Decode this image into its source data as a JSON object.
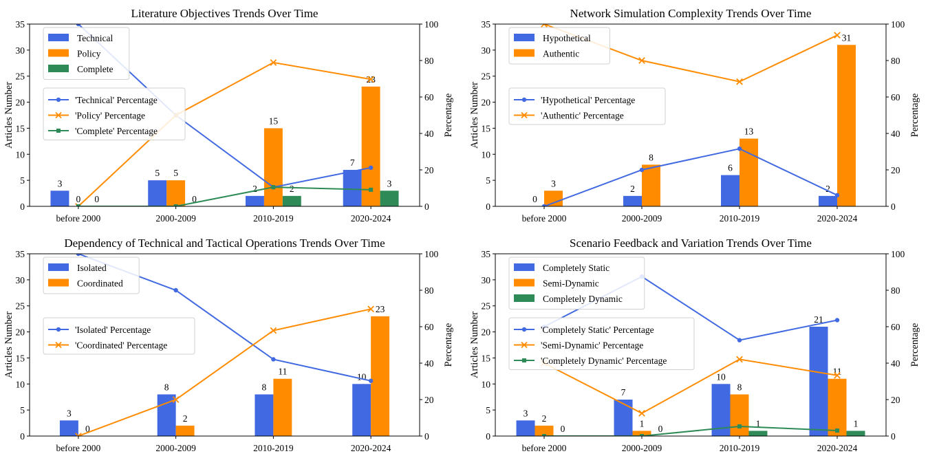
{
  "colors": {
    "blue": "#4169E1",
    "orange": "#FF8C00",
    "green": "#2E8B57"
  },
  "chart_data": [
    {
      "type": "bar",
      "title": "Literature Objectives Trends Over Time",
      "categories": [
        "before 2000",
        "2000-2009",
        "2010-2019",
        "2020-2024"
      ],
      "ylabel": "Articles Number",
      "y2label": "Percentage",
      "ylim": [
        0,
        35
      ],
      "y2lim": [
        0,
        100
      ],
      "yticks": [
        0,
        5,
        10,
        15,
        20,
        25,
        30,
        35
      ],
      "y2ticks": [
        0,
        20,
        40,
        60,
        80,
        100
      ],
      "bar_legend_position": "upper-left",
      "line_legend_position": "center-left",
      "series": [
        {
          "name": "Technical",
          "color": "blue",
          "values": [
            3,
            5,
            2,
            7
          ]
        },
        {
          "name": "Policy",
          "color": "orange",
          "values": [
            0,
            5,
            15,
            23
          ]
        },
        {
          "name": "Complete",
          "color": "green",
          "values": [
            0,
            0,
            2,
            3
          ]
        }
      ],
      "percentage_series": [
        {
          "name": "'Technical' Percentage",
          "color": "blue",
          "marker": "o",
          "values": [
            100,
            50,
            10.5,
            21.2
          ]
        },
        {
          "name": "'Policy' Percentage",
          "color": "orange",
          "marker": "x",
          "values": [
            0,
            50,
            78.9,
            69.7
          ]
        },
        {
          "name": "'Complete' Percentage",
          "color": "green",
          "marker": "s",
          "values": [
            0,
            0,
            10.5,
            9.1
          ]
        }
      ]
    },
    {
      "type": "bar",
      "title": "Network Simulation Complexity Trends Over Time",
      "categories": [
        "before 2000",
        "2000-2009",
        "2010-2019",
        "2020-2024"
      ],
      "ylabel": "Articles Number",
      "y2label": "Percentage",
      "ylim": [
        0,
        35
      ],
      "y2lim": [
        0,
        100
      ],
      "yticks": [
        0,
        5,
        10,
        15,
        20,
        25,
        30,
        35
      ],
      "y2ticks": [
        0,
        20,
        40,
        60,
        80,
        100
      ],
      "bar_legend_position": "upper-left",
      "line_legend_position": "center-left",
      "series": [
        {
          "name": "Hypothetical",
          "color": "blue",
          "values": [
            0,
            2,
            6,
            2
          ]
        },
        {
          "name": "Authentic",
          "color": "orange",
          "values": [
            3,
            8,
            13,
            31
          ]
        }
      ],
      "percentage_series": [
        {
          "name": "'Hypothetical' Percentage",
          "color": "blue",
          "marker": "o",
          "values": [
            0,
            20,
            31.6,
            6.1
          ]
        },
        {
          "name": "'Authentic' Percentage",
          "color": "orange",
          "marker": "x",
          "values": [
            100,
            80,
            68.4,
            93.9
          ]
        }
      ]
    },
    {
      "type": "bar",
      "title": "Dependency of Technical and Tactical Operations Trends Over Time",
      "categories": [
        "before 2000",
        "2000-2009",
        "2010-2019",
        "2020-2024"
      ],
      "ylabel": "Articles Number",
      "y2label": "Percentage",
      "ylim": [
        0,
        35
      ],
      "y2lim": [
        0,
        100
      ],
      "yticks": [
        0,
        5,
        10,
        15,
        20,
        25,
        30,
        35
      ],
      "y2ticks": [
        0,
        20,
        40,
        60,
        80,
        100
      ],
      "bar_legend_position": "upper-left",
      "line_legend_position": "center-left",
      "series": [
        {
          "name": "Isolated",
          "color": "blue",
          "values": [
            3,
            8,
            8,
            10
          ]
        },
        {
          "name": "Coordinated",
          "color": "orange",
          "values": [
            0,
            2,
            11,
            23
          ]
        }
      ],
      "percentage_series": [
        {
          "name": "'Isolated' Percentage",
          "color": "blue",
          "marker": "o",
          "values": [
            100,
            80,
            42.1,
            30.3
          ]
        },
        {
          "name": "'Coordinated' Percentage",
          "color": "orange",
          "marker": "x",
          "values": [
            0,
            20,
            57.9,
            69.7
          ]
        }
      ]
    },
    {
      "type": "bar",
      "title": "Scenario Feedback and Variation Trends Over Time",
      "categories": [
        "before 2000",
        "2000-2009",
        "2010-2019",
        "2020-2024"
      ],
      "ylabel": "Articles Number",
      "y2label": "Percentage",
      "ylim": [
        0,
        35
      ],
      "y2lim": [
        0,
        100
      ],
      "yticks": [
        0,
        5,
        10,
        15,
        20,
        25,
        30,
        35
      ],
      "y2ticks": [
        0,
        20,
        40,
        60,
        80,
        100
      ],
      "bar_legend_position": "upper-left",
      "line_legend_position": "center-left",
      "series": [
        {
          "name": " Completely Static",
          "color": "blue",
          "values": [
            3,
            7,
            10,
            21
          ]
        },
        {
          "name": "Semi-Dynamic",
          "color": "orange",
          "values": [
            2,
            1,
            8,
            11
          ]
        },
        {
          "name": " Completely Dynamic",
          "color": "green",
          "values": [
            0,
            0,
            1,
            1
          ]
        }
      ],
      "percentage_series": [
        {
          "name": "'Completely Static' Percentage",
          "color": "blue",
          "marker": "o",
          "values": [
            60,
            87.5,
            52.6,
            63.6
          ]
        },
        {
          "name": "'Semi-Dynamic' Percentage",
          "color": "orange",
          "marker": "x",
          "values": [
            40,
            12.5,
            42.1,
            33.3
          ]
        },
        {
          "name": "'Completely Dynamic' Percentage",
          "color": "green",
          "marker": "s",
          "values": [
            0,
            0,
            5.3,
            3.0
          ]
        }
      ]
    }
  ]
}
